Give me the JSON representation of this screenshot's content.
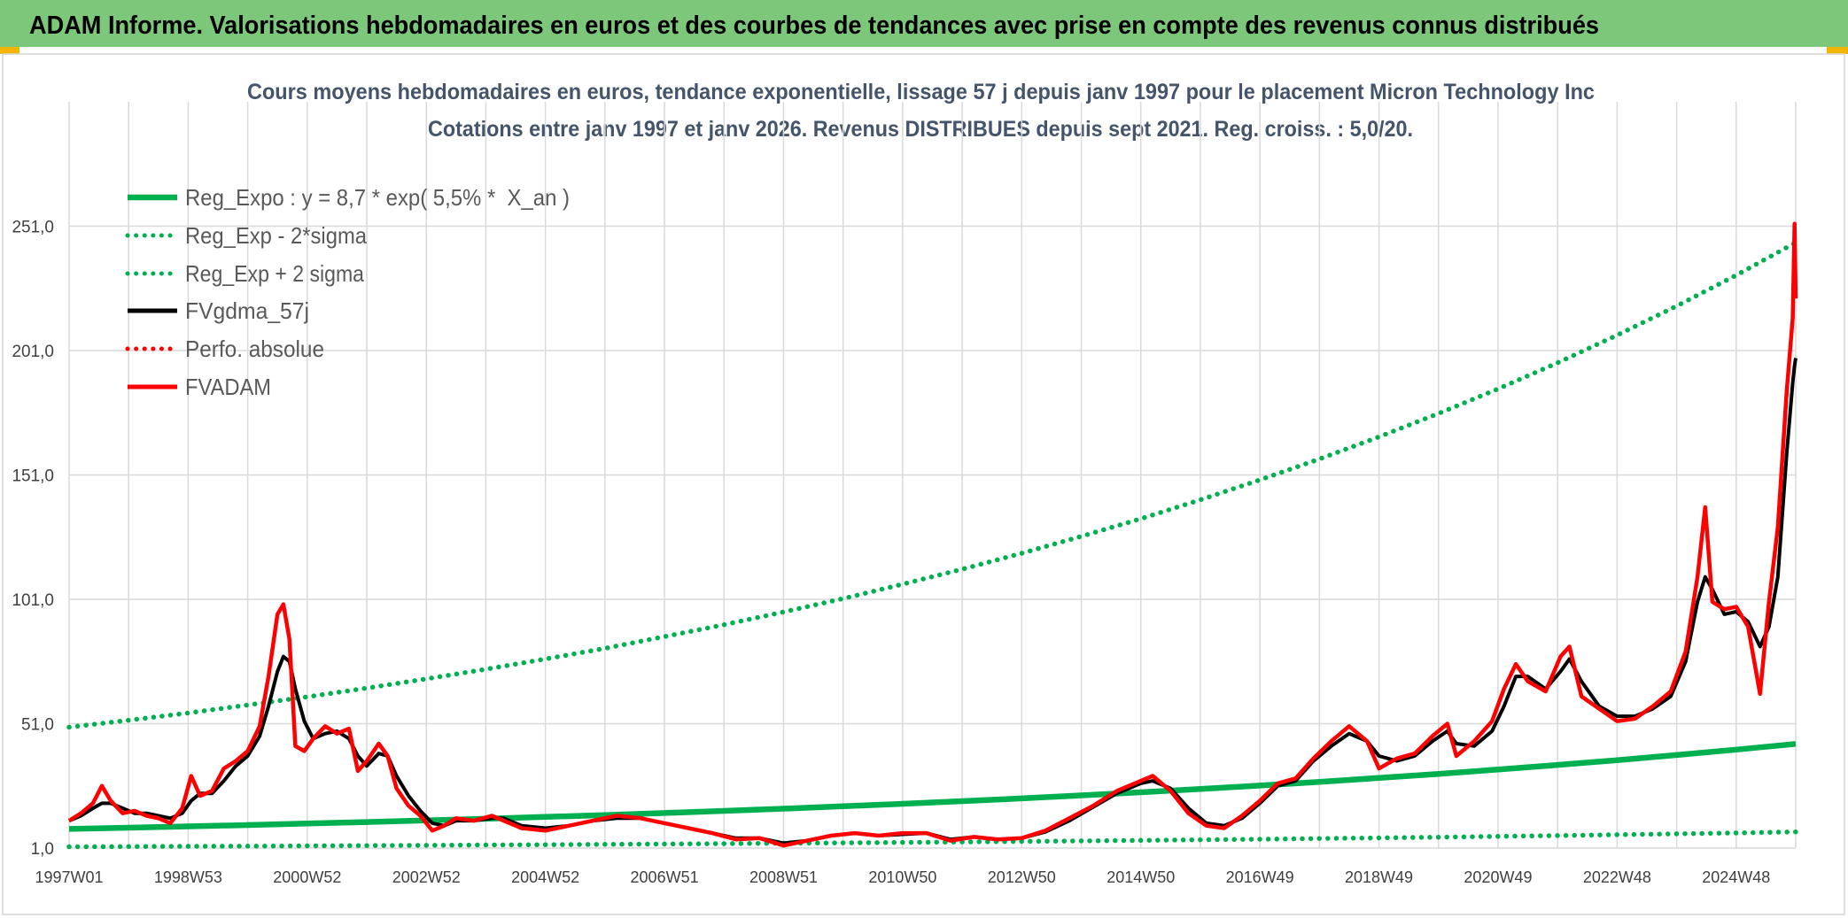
{
  "header": {
    "title": "ADAM Informe. Valorisations hebdomadaires en euros et des courbes de tendances avec prise en compte des revenus connus distribués"
  },
  "colors": {
    "header_bg": "#7cc77a",
    "corner_marker": "#f2b600",
    "title_text": "#44546a"
  },
  "chart_data": {
    "type": "line",
    "title": "Cours moyens hebdomadaires en euros, tendance exponentielle, lissage 57 j depuis janv 1997 pour le placement Micron Technology Inc",
    "subtitle": "Cotations entre janv 1997 et janv 2026. Revenus DISTRIBUES depuis sept 2021. Reg. croiss. : 5,0/20.",
    "xlabel": "",
    "ylabel": "",
    "xlim": [
      1997,
      2026
    ],
    "ylim": [
      1,
      301
    ],
    "grid": true,
    "legend": "top-left",
    "y_ticks": [
      {
        "value": 1,
        "label": "1,0"
      },
      {
        "value": 51,
        "label": "51,0"
      },
      {
        "value": 101,
        "label": "101,0"
      },
      {
        "value": 151,
        "label": "151,0"
      },
      {
        "value": 201,
        "label": "201,0"
      },
      {
        "value": 251,
        "label": "251,0"
      }
    ],
    "x_ticks": [
      {
        "value": 1997,
        "label": "1997W01"
      },
      {
        "value": 1999,
        "label": "1998W53"
      },
      {
        "value": 2001,
        "label": "2000W52"
      },
      {
        "value": 2003,
        "label": "2002W52"
      },
      {
        "value": 2005,
        "label": "2004W52"
      },
      {
        "value": 2007,
        "label": "2006W51"
      },
      {
        "value": 2009,
        "label": "2008W51"
      },
      {
        "value": 2011,
        "label": "2010W50"
      },
      {
        "value": 2013,
        "label": "2012W50"
      },
      {
        "value": 2015,
        "label": "2014W50"
      },
      {
        "value": 2017,
        "label": "2016W49"
      },
      {
        "value": 2019,
        "label": "2018W49"
      },
      {
        "value": 2021,
        "label": "2020W49"
      },
      {
        "value": 2023,
        "label": "2022W48"
      },
      {
        "value": 2025,
        "label": "2024W48"
      }
    ],
    "series": [
      {
        "name": "Reg_Expo : y = 8,7 * exp( 5,5% *  X_an )",
        "color": "#00b050",
        "dotted": false,
        "x": [
          1997,
          1998,
          1999,
          2000,
          2001,
          2002,
          2003,
          2004,
          2005,
          2006,
          2007,
          2008,
          2009,
          2010,
          2011,
          2012,
          2013,
          2014,
          2015,
          2016,
          2017,
          2018,
          2019,
          2020,
          2021,
          2022,
          2023,
          2024,
          2025,
          2026
        ],
        "values": [
          8.7,
          9.19,
          9.71,
          10.26,
          10.84,
          11.45,
          12.1,
          12.79,
          13.51,
          14.27,
          15.08,
          15.93,
          16.83,
          17.78,
          18.79,
          19.85,
          20.97,
          22.16,
          23.41,
          24.74,
          26.14,
          27.61,
          29.18,
          30.82,
          32.57,
          34.41,
          36.35,
          38.41,
          40.58,
          42.88
        ]
      },
      {
        "name": "Reg_Exp - 2*sigma",
        "color": "#00b050",
        "dotted": true,
        "x": [
          1997,
          1998,
          1999,
          2000,
          2001,
          2002,
          2003,
          2004,
          2005,
          2006,
          2007,
          2008,
          2009,
          2010,
          2011,
          2012,
          2013,
          2014,
          2015,
          2016,
          2017,
          2018,
          2019,
          2020,
          2021,
          2022,
          2023,
          2024,
          2025,
          2026
        ],
        "values": [
          1.52,
          1.61,
          1.7,
          1.8,
          1.9,
          2.0,
          2.12,
          2.24,
          2.36,
          2.5,
          2.64,
          2.79,
          2.95,
          3.11,
          3.29,
          3.47,
          3.67,
          3.88,
          4.1,
          4.33,
          4.57,
          4.83,
          5.11,
          5.39,
          5.7,
          6.02,
          6.36,
          6.72,
          7.1,
          7.5
        ]
      },
      {
        "name": "Reg_Exp + 2 sigma",
        "color": "#00b050",
        "dotted": true,
        "x": [
          1997,
          1998,
          1999,
          2000,
          2001,
          2002,
          2003,
          2004,
          2005,
          2006,
          2007,
          2008,
          2009,
          2010,
          2011,
          2012,
          2013,
          2014,
          2015,
          2016,
          2017,
          2018,
          2019,
          2020,
          2021,
          2022,
          2023,
          2024,
          2025,
          2026
        ],
        "values": [
          49.6,
          52.4,
          55.3,
          58.5,
          61.8,
          65.3,
          69.0,
          72.9,
          77.0,
          81.3,
          86.0,
          90.8,
          95.9,
          101.3,
          107.1,
          113.1,
          119.5,
          126.3,
          133.4,
          141.0,
          149.0,
          157.4,
          166.3,
          175.7,
          185.6,
          196.1,
          207.2,
          218.9,
          231.3,
          244.4
        ]
      },
      {
        "name": "FVgdma_57j",
        "color": "#000000",
        "dotted": false,
        "x": [
          1997.0,
          1997.2,
          1997.4,
          1997.55,
          1997.7,
          1997.9,
          1998.1,
          1998.3,
          1998.5,
          1998.7,
          1998.9,
          1999.05,
          1999.2,
          1999.4,
          1999.6,
          1999.8,
          2000.0,
          2000.2,
          2000.35,
          2000.5,
          2000.6,
          2000.7,
          2000.8,
          2000.95,
          2001.1,
          2001.3,
          2001.5,
          2001.7,
          2001.85,
          2002.0,
          2002.2,
          2002.35,
          2002.5,
          2002.7,
          2002.9,
          2003.1,
          2003.3,
          2003.5,
          2003.8,
          2004.1,
          2004.3,
          2004.6,
          2005.0,
          2005.4,
          2005.8,
          2006.2,
          2006.6,
          2007.0,
          2007.4,
          2007.8,
          2008.2,
          2008.6,
          2009.0,
          2009.4,
          2009.8,
          2010.2,
          2010.6,
          2011.0,
          2011.4,
          2011.8,
          2012.2,
          2012.6,
          2013.0,
          2013.4,
          2013.8,
          2014.2,
          2014.6,
          2015.0,
          2015.2,
          2015.5,
          2015.8,
          2016.1,
          2016.4,
          2016.7,
          2017.0,
          2017.3,
          2017.6,
          2017.9,
          2018.2,
          2018.5,
          2018.8,
          2019.0,
          2019.3,
          2019.6,
          2019.9,
          2020.15,
          2020.3,
          2020.6,
          2020.9,
          2021.1,
          2021.3,
          2021.5,
          2021.8,
          2022.05,
          2022.2,
          2022.4,
          2022.7,
          2023.0,
          2023.3,
          2023.6,
          2023.9,
          2024.15,
          2024.35,
          2024.48,
          2024.6,
          2024.8,
          2025.0,
          2025.2,
          2025.4,
          2025.55,
          2025.7,
          2025.85,
          2025.95,
          2025.98,
          2026.0
        ],
        "values": [
          12,
          14,
          17,
          19,
          19,
          17,
          15,
          15,
          14,
          13,
          15,
          20,
          23,
          23,
          28,
          34,
          38,
          46,
          58,
          72,
          78,
          76,
          65,
          52,
          45,
          47,
          48,
          45,
          38,
          34,
          39,
          38,
          30,
          22,
          16,
          11,
          10,
          12,
          12,
          13,
          13,
          10,
          9,
          10,
          12,
          13,
          13,
          11,
          9,
          7,
          5,
          5,
          3,
          4,
          6,
          7,
          6,
          6.5,
          7,
          4.5,
          5.5,
          4.5,
          5,
          7.5,
          12,
          17.5,
          23,
          27,
          28,
          25,
          17,
          11,
          10,
          13,
          19,
          26,
          28,
          36,
          42,
          47,
          44,
          38,
          36,
          38,
          44,
          48,
          43,
          42,
          48,
          58,
          70,
          70,
          65,
          72,
          77,
          68,
          58,
          54,
          54,
          57,
          62,
          76,
          100,
          110,
          105,
          95,
          96,
          92,
          82,
          90,
          110,
          160,
          188,
          195,
          198
        ]
      },
      {
        "name": "Perfo. absolue",
        "color": "#ff0000",
        "dotted": true
      },
      {
        "name": "FVADAM",
        "color": "#ff0000",
        "dotted": false,
        "x": [
          1997.0,
          1997.2,
          1997.4,
          1997.55,
          1997.7,
          1997.9,
          1998.1,
          1998.3,
          1998.5,
          1998.7,
          1998.9,
          1999.05,
          1999.2,
          1999.4,
          1999.6,
          1999.8,
          2000.0,
          2000.2,
          2000.35,
          2000.5,
          2000.6,
          2000.7,
          2000.8,
          2000.95,
          2001.1,
          2001.3,
          2001.5,
          2001.7,
          2001.85,
          2002.0,
          2002.2,
          2002.35,
          2002.5,
          2002.7,
          2002.9,
          2003.1,
          2003.3,
          2003.5,
          2003.8,
          2004.1,
          2004.3,
          2004.6,
          2005.0,
          2005.4,
          2005.8,
          2006.2,
          2006.6,
          2007.0,
          2007.4,
          2007.8,
          2008.2,
          2008.6,
          2009.0,
          2009.4,
          2009.8,
          2010.2,
          2010.6,
          2011.0,
          2011.4,
          2011.8,
          2012.2,
          2012.6,
          2013.0,
          2013.4,
          2013.8,
          2014.2,
          2014.6,
          2015.0,
          2015.2,
          2015.5,
          2015.8,
          2016.1,
          2016.4,
          2016.7,
          2017.0,
          2017.3,
          2017.6,
          2017.9,
          2018.2,
          2018.5,
          2018.8,
          2019.0,
          2019.3,
          2019.6,
          2019.9,
          2020.15,
          2020.3,
          2020.6,
          2020.9,
          2021.1,
          2021.3,
          2021.5,
          2021.8,
          2022.05,
          2022.2,
          2022.4,
          2022.7,
          2023.0,
          2023.3,
          2023.6,
          2023.9,
          2024.15,
          2024.35,
          2024.48,
          2024.6,
          2024.8,
          2025.0,
          2025.2,
          2025.4,
          2025.55,
          2025.7,
          2025.85,
          2025.95,
          2025.98,
          2026.0
        ],
        "values": [
          12,
          15,
          19,
          26,
          20,
          15,
          16,
          14,
          13,
          11,
          17,
          30,
          22,
          24,
          33,
          36,
          40,
          50,
          70,
          95,
          99,
          85,
          42,
          40,
          45,
          50,
          47,
          49,
          32,
          36,
          43,
          38,
          25,
          18,
          14,
          8,
          10,
          13,
          12,
          14,
          12,
          9,
          8,
          10,
          12,
          14,
          13,
          11,
          9,
          7,
          4.5,
          5,
          2,
          4,
          6,
          7,
          6,
          7,
          7,
          4,
          5.5,
          4.5,
          5,
          8,
          13,
          18,
          24,
          28,
          30,
          24,
          15,
          10,
          9,
          14,
          20,
          27,
          29,
          37,
          44,
          50,
          44,
          33,
          37,
          39,
          46,
          51,
          38,
          44,
          52,
          65,
          75,
          68,
          64,
          78,
          82,
          62,
          57,
          52,
          53,
          58,
          64,
          80,
          110,
          138,
          100,
          97,
          98,
          90,
          63,
          100,
          130,
          185,
          214,
          252,
          222
        ]
      }
    ]
  }
}
